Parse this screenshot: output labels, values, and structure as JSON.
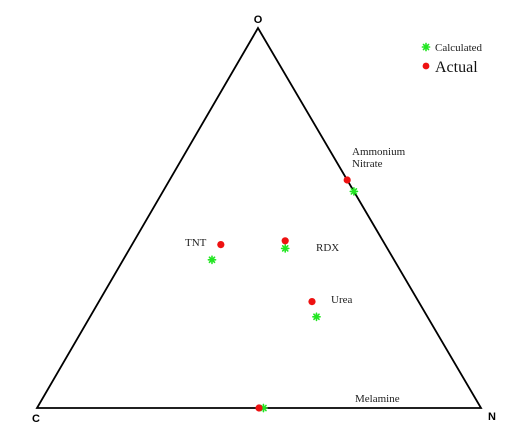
{
  "chart_data": {
    "type": "ternary-scatter",
    "vertices": {
      "top": "O",
      "left": "C",
      "right": "N"
    },
    "legend": {
      "placement": "top-right",
      "entries": [
        {
          "name": "Calculated",
          "marker": "star",
          "color": "#22e622"
        },
        {
          "name": "Actual",
          "marker": "circle",
          "color": "#ee1111"
        }
      ]
    },
    "colors": {
      "calculated": "#22e622",
      "actual": "#ee1111",
      "axis": "#000000"
    },
    "labels": [
      {
        "text": "Ammonium",
        "point": "ammonium-nitrate"
      },
      {
        "text": "Nitrate",
        "point": "ammonium-nitrate"
      },
      {
        "text": "TNT",
        "point": "tnt"
      },
      {
        "text": "RDX",
        "point": "rdx"
      },
      {
        "text": "Urea",
        "point": "urea"
      },
      {
        "text": "Melamine",
        "point": "melamine"
      }
    ],
    "points": [
      {
        "id": "ammonium-nitrate",
        "actual": {
          "O": 0.6,
          "C": 0.0,
          "N": 0.4
        },
        "calculated": {
          "O": 0.57,
          "C": 0.0,
          "N": 0.43
        }
      },
      {
        "id": "tnt",
        "actual": {
          "O": 0.43,
          "C": 0.37,
          "N": 0.2
        },
        "calculated": {
          "O": 0.39,
          "C": 0.41,
          "N": 0.2
        }
      },
      {
        "id": "rdx",
        "actual": {
          "O": 0.44,
          "C": 0.22,
          "N": 0.34
        },
        "calculated": {
          "O": 0.42,
          "C": 0.23,
          "N": 0.35
        }
      },
      {
        "id": "urea",
        "actual": {
          "O": 0.28,
          "C": 0.24,
          "N": 0.48
        },
        "calculated": {
          "O": 0.24,
          "C": 0.25,
          "N": 0.51
        }
      },
      {
        "id": "melamine",
        "actual": {
          "O": 0.0,
          "C": 0.5,
          "N": 0.5
        },
        "calculated": {
          "O": 0.0,
          "C": 0.49,
          "N": 0.51
        }
      }
    ]
  }
}
